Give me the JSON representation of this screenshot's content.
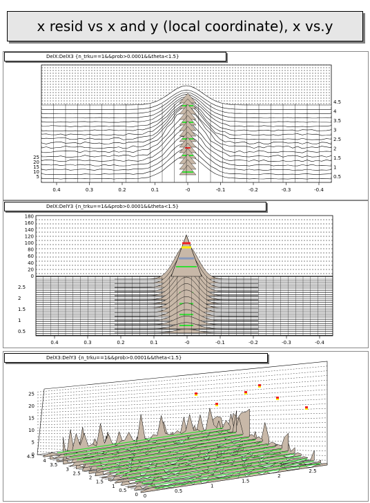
{
  "title": "x resid vs x and y (local coordinate), x vs.y",
  "colors": {
    "surface_base": "#c8b8a8",
    "band_green": "#33dd33",
    "band_red": "#ee2222",
    "band_yellow": "#ffee00",
    "band_blue": "#8899bb",
    "title_bg": "#e6e6e6"
  },
  "chart_data": [
    {
      "type": "surface",
      "label": "DelX:DelX3 {n_trku==1&&prob>0.0001&&theta<1.5}",
      "x_ticks": [
        "0.4",
        "0.3",
        "0.2",
        "0.1",
        "-0",
        "-0.1",
        "-0.2",
        "-0.3",
        "-0.4"
      ],
      "y_ticks": [
        "0.5",
        "1",
        "1.5",
        "2",
        "2.5",
        "3",
        "3.5",
        "4",
        "4.5"
      ],
      "z_ticks": [
        "5",
        "10",
        "15",
        "20",
        "25"
      ],
      "xlim": [
        0.45,
        -0.45
      ],
      "ylim": [
        0.5,
        4.5
      ],
      "zlim": [
        0,
        25
      ],
      "peak_x": 0.0,
      "peak_z": 25
    },
    {
      "type": "surface",
      "label": "DelX:DelY3 {n_trku==1&&prob>0.0001&&theta<1.5}",
      "x_ticks": [
        "0.4",
        "0.3",
        "0.2",
        "0.1",
        "-0",
        "-0.1",
        "-0.2",
        "-0.3",
        "-0.4"
      ],
      "y_ticks": [
        "0.5",
        "1",
        "1.5",
        "2",
        "2.5"
      ],
      "z_ticks": [
        "0",
        "20",
        "40",
        "60",
        "80",
        "100",
        "120",
        "140",
        "160",
        "180"
      ],
      "xlim": [
        0.45,
        -0.45
      ],
      "ylim": [
        0.5,
        3
      ],
      "zlim": [
        0,
        180
      ],
      "peak_x": 0.0,
      "peak_z": 120
    },
    {
      "type": "surface",
      "label": "DelX3:DelY3 {n_trku==1&&prob>0.0001&&theta<1.5}",
      "x_ticks": [
        "0",
        "0.5",
        "1",
        "1.5",
        "2",
        "2.5"
      ],
      "y_ticks": [
        "0",
        "0.5",
        "1",
        "1.5",
        "2",
        "2.5",
        "3",
        "3.5",
        "4",
        "4.5"
      ],
      "z_ticks": [
        "0",
        "5",
        "10",
        "15",
        "20",
        "25"
      ],
      "xlim": [
        0,
        3
      ],
      "ylim": [
        0,
        5
      ],
      "zlim": [
        0,
        28
      ]
    }
  ]
}
